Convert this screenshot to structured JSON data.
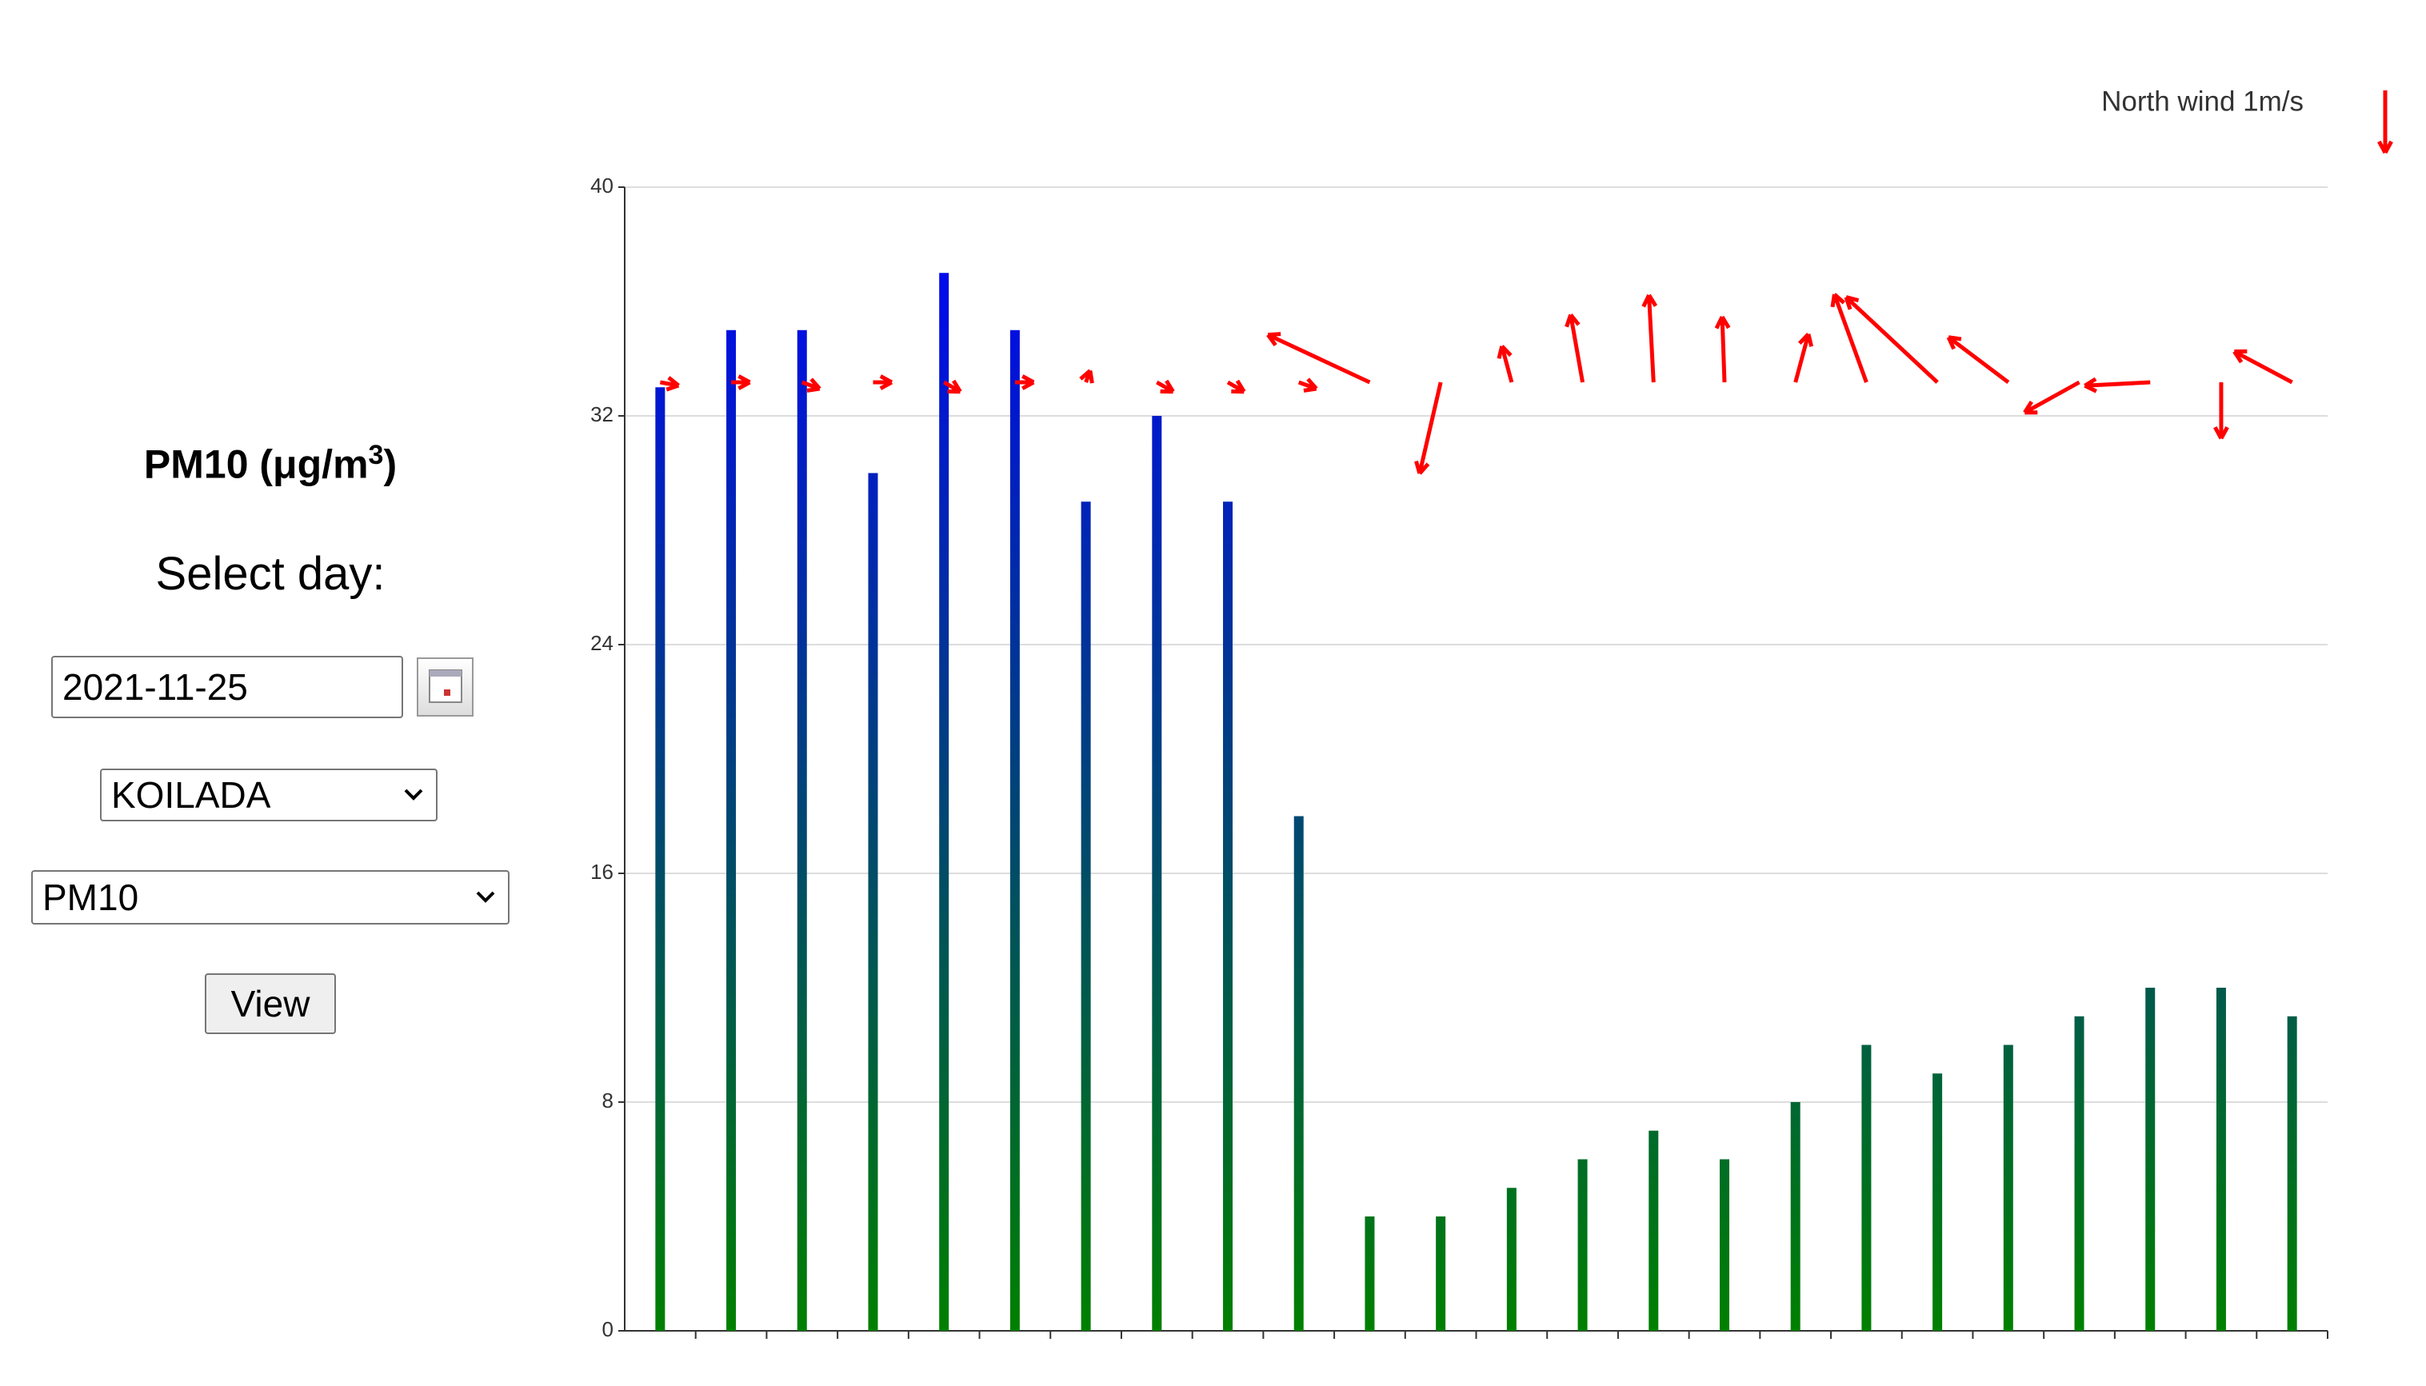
{
  "sidebar": {
    "title": {
      "text": "PM10 (μg/m",
      "superscript": "3",
      "close": ")"
    },
    "select_day_label": "Select day:",
    "date": "2021-11-25",
    "station": "KOILADA",
    "pollutant": "PM10",
    "button": "View"
  },
  "chart_data": {
    "type": "bar",
    "values": [
      33,
      35,
      35,
      30,
      37,
      35,
      29,
      32,
      29,
      18,
      4,
      4,
      5,
      6,
      7,
      6,
      8,
      10,
      9,
      10,
      11,
      12,
      12,
      11
    ],
    "gradient": [
      "#0000ff",
      "#008000"
    ],
    "ylim": [
      0,
      40
    ],
    "yticks": [
      0,
      8,
      16,
      24,
      32,
      40
    ],
    "grid": true,
    "wind": {
      "label": "North wind 1m/s",
      "color": "#ff0000",
      "direction": [
        280,
        270,
        290,
        270,
        300,
        270,
        200,
        300,
        300,
        290,
        115,
        13,
        165,
        170,
        177,
        178,
        195,
        160,
        133,
        127,
        61,
        87,
        0,
        118
      ],
      "speed": [
        0.3,
        0.3,
        0.3,
        0.3,
        0.3,
        0.3,
        0.2,
        0.3,
        0.3,
        0.3,
        1.8,
        1.5,
        0.6,
        1.1,
        1.4,
        1.05,
        0.8,
        1.5,
        2.0,
        1.2,
        1.0,
        1.05,
        0.9,
        1.05
      ]
    }
  }
}
